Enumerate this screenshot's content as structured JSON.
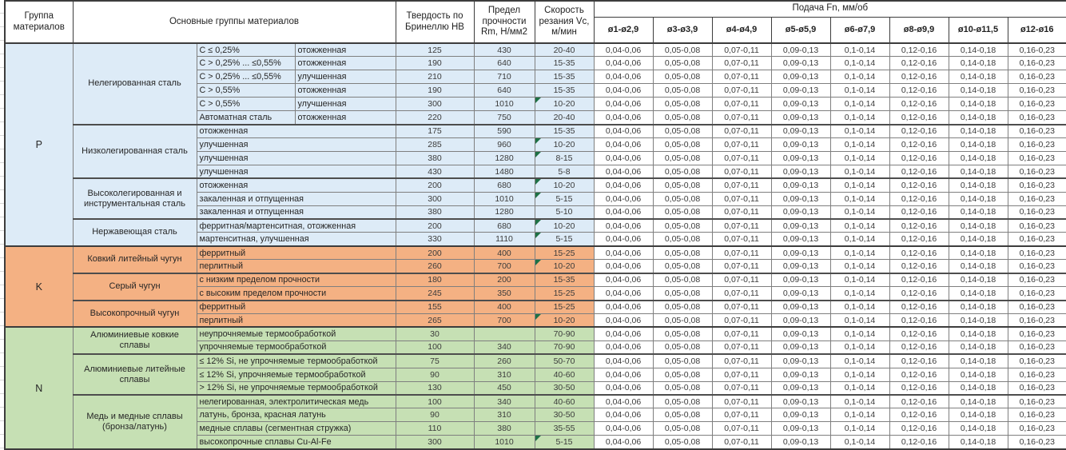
{
  "header": {
    "col_group": "Группа материалов",
    "col_material": "Основные группы материалов",
    "col_hardness": "Твердость по Бринеллю HB",
    "col_strength": "Предел прочности Rm, Н/мм2",
    "col_speed": "Скорость резания Vc, м/мин",
    "feed_title": "Подача Fn, мм/об",
    "feed_cols": [
      "ø1-ø2,9",
      "ø3-ø3,9",
      "ø4-ø4,9",
      "ø5-ø5,9",
      "ø6-ø7,9",
      "ø8-ø9,9",
      "ø10-ø11,5",
      "ø12-ø16"
    ]
  },
  "feed_values": [
    "0,04-0,06",
    "0,05-0,08",
    "0,07-0,11",
    "0,09-0,13",
    "0,1-0,14",
    "0,12-0,16",
    "0,14-0,18",
    "0,16-0,23"
  ],
  "colors": {
    "section_p": "#DDEBF7",
    "section_k": "#F4B183",
    "section_n": "#C6E0B4",
    "flag_triangle": "#1E7145",
    "grid_line": "#7F7F7F",
    "heavy_line": "#3C3C3C"
  },
  "sections": [
    {
      "group": "P",
      "color_key": "section_p",
      "subgroups": [
        {
          "name": "Нелегированная сталь",
          "rows": [
            {
              "spec": "C ≤ 0,25%",
              "state": "отожженная",
              "hb": "125",
              "rm": "430",
              "vc": "20-40",
              "flag": false
            },
            {
              "spec": "C > 0,25% ... ≤0,55%",
              "state": "отожженная",
              "hb": "190",
              "rm": "640",
              "vc": "15-35",
              "flag": false
            },
            {
              "spec": "C > 0,25% ... ≤0,55%",
              "state": "улучшенная",
              "hb": "210",
              "rm": "710",
              "vc": "15-35",
              "flag": false
            },
            {
              "spec": "C > 0,55%",
              "state": "отожженная",
              "hb": "190",
              "rm": "640",
              "vc": "15-35",
              "flag": false
            },
            {
              "spec": "C > 0,55%",
              "state": "улучшенная",
              "hb": "300",
              "rm": "1010",
              "vc": "10-20",
              "flag": true
            },
            {
              "spec": "Автоматная сталь",
              "state": "отожженная",
              "hb": "220",
              "rm": "750",
              "vc": "20-40",
              "flag": false
            }
          ]
        },
        {
          "name": "Низколегированная сталь",
          "rows": [
            {
              "spec": "отожженная",
              "hb": "175",
              "rm": "590",
              "vc": "15-35",
              "flag": false
            },
            {
              "spec": "улучшенная",
              "hb": "285",
              "rm": "960",
              "vc": "10-20",
              "flag": true
            },
            {
              "spec": "улучшенная",
              "hb": "380",
              "rm": "1280",
              "vc": "8-15",
              "flag": true
            },
            {
              "spec": "улучшенная",
              "hb": "430",
              "rm": "1480",
              "vc": "5-8",
              "flag": false
            }
          ]
        },
        {
          "name": "Высоколегированная и инструментальная сталь",
          "rows": [
            {
              "spec": "отожженная",
              "hb": "200",
              "rm": "680",
              "vc": "10-20",
              "flag": true
            },
            {
              "spec": "закаленная и отпущенная",
              "hb": "300",
              "rm": "1010",
              "vc": "5-15",
              "flag": true
            },
            {
              "spec": "закаленная и отпущенная",
              "hb": "380",
              "rm": "1280",
              "vc": "5-10",
              "flag": false
            }
          ]
        },
        {
          "name": "Нержавеющая сталь",
          "rows": [
            {
              "spec": "ферритная/мартенситная, отожженная",
              "hb": "200",
              "rm": "680",
              "vc": "10-20",
              "flag": true
            },
            {
              "spec": "мартенситная, улучшенная",
              "hb": "330",
              "rm": "1110",
              "vc": "5-15",
              "flag": true
            }
          ]
        }
      ]
    },
    {
      "group": "K",
      "color_key": "section_k",
      "subgroups": [
        {
          "name": "Ковкий литейный чугун",
          "rows": [
            {
              "spec": "ферритный",
              "hb": "200",
              "rm": "400",
              "vc": "15-25",
              "flag": false
            },
            {
              "spec": "перлитный",
              "hb": "260",
              "rm": "700",
              "vc": "10-20",
              "flag": true
            }
          ]
        },
        {
          "name": "Серый чугун",
          "rows": [
            {
              "spec": "с низким пределом прочности",
              "hb": "180",
              "rm": "200",
              "vc": "15-35",
              "flag": false
            },
            {
              "spec": "с высоким пределом прочности",
              "hb": "245",
              "rm": "350",
              "vc": "15-25",
              "flag": false
            }
          ]
        },
        {
          "name": "Высокопрочный чугун",
          "rows": [
            {
              "spec": "ферритный",
              "hb": "155",
              "rm": "400",
              "vc": "15-25",
              "flag": false
            },
            {
              "spec": "перлитный",
              "hb": "265",
              "rm": "700",
              "vc": "10-20",
              "flag": true
            }
          ]
        }
      ]
    },
    {
      "group": "N",
      "color_key": "section_n",
      "subgroups": [
        {
          "name": "Алюминиевые ковкие сплавы",
          "rows": [
            {
              "spec": "неупрочняемые термообработкой",
              "hb": "30",
              "rm": "",
              "vc": "70-90",
              "flag": false
            },
            {
              "spec": "упрочняемые термообработкой",
              "hb": "100",
              "rm": "340",
              "vc": "70-90",
              "flag": false
            }
          ]
        },
        {
          "name": "Алюминиевые литейные сплавы",
          "rows": [
            {
              "spec": "≤ 12% Si, не упрочняемые термообработкой",
              "hb": "75",
              "rm": "260",
              "vc": "50-70",
              "flag": false
            },
            {
              "spec": "≤ 12% Si, упрочняемые термообработкой",
              "hb": "90",
              "rm": "310",
              "vc": "40-60",
              "flag": false
            },
            {
              "spec": "> 12% Si, не упрочняемые термообработкой",
              "hb": "130",
              "rm": "450",
              "vc": "30-50",
              "flag": false
            }
          ]
        },
        {
          "name": "Медь и медные сплавы (бронза/латунь)",
          "rows": [
            {
              "spec": "нелегированная, электролитическая медь",
              "hb": "100",
              "rm": "340",
              "vc": "40-60",
              "flag": false
            },
            {
              "spec": "латунь, бронза, красная латунь",
              "hb": "90",
              "rm": "310",
              "vc": "30-50",
              "flag": false
            },
            {
              "spec": "медные сплавы (сегментная стружка)",
              "hb": "110",
              "rm": "380",
              "vc": "35-55",
              "flag": false
            },
            {
              "spec": "высокопрочные сплавы Cu-Al-Fe",
              "hb": "300",
              "rm": "1010",
              "vc": "5-15",
              "flag": true
            }
          ]
        }
      ]
    }
  ]
}
